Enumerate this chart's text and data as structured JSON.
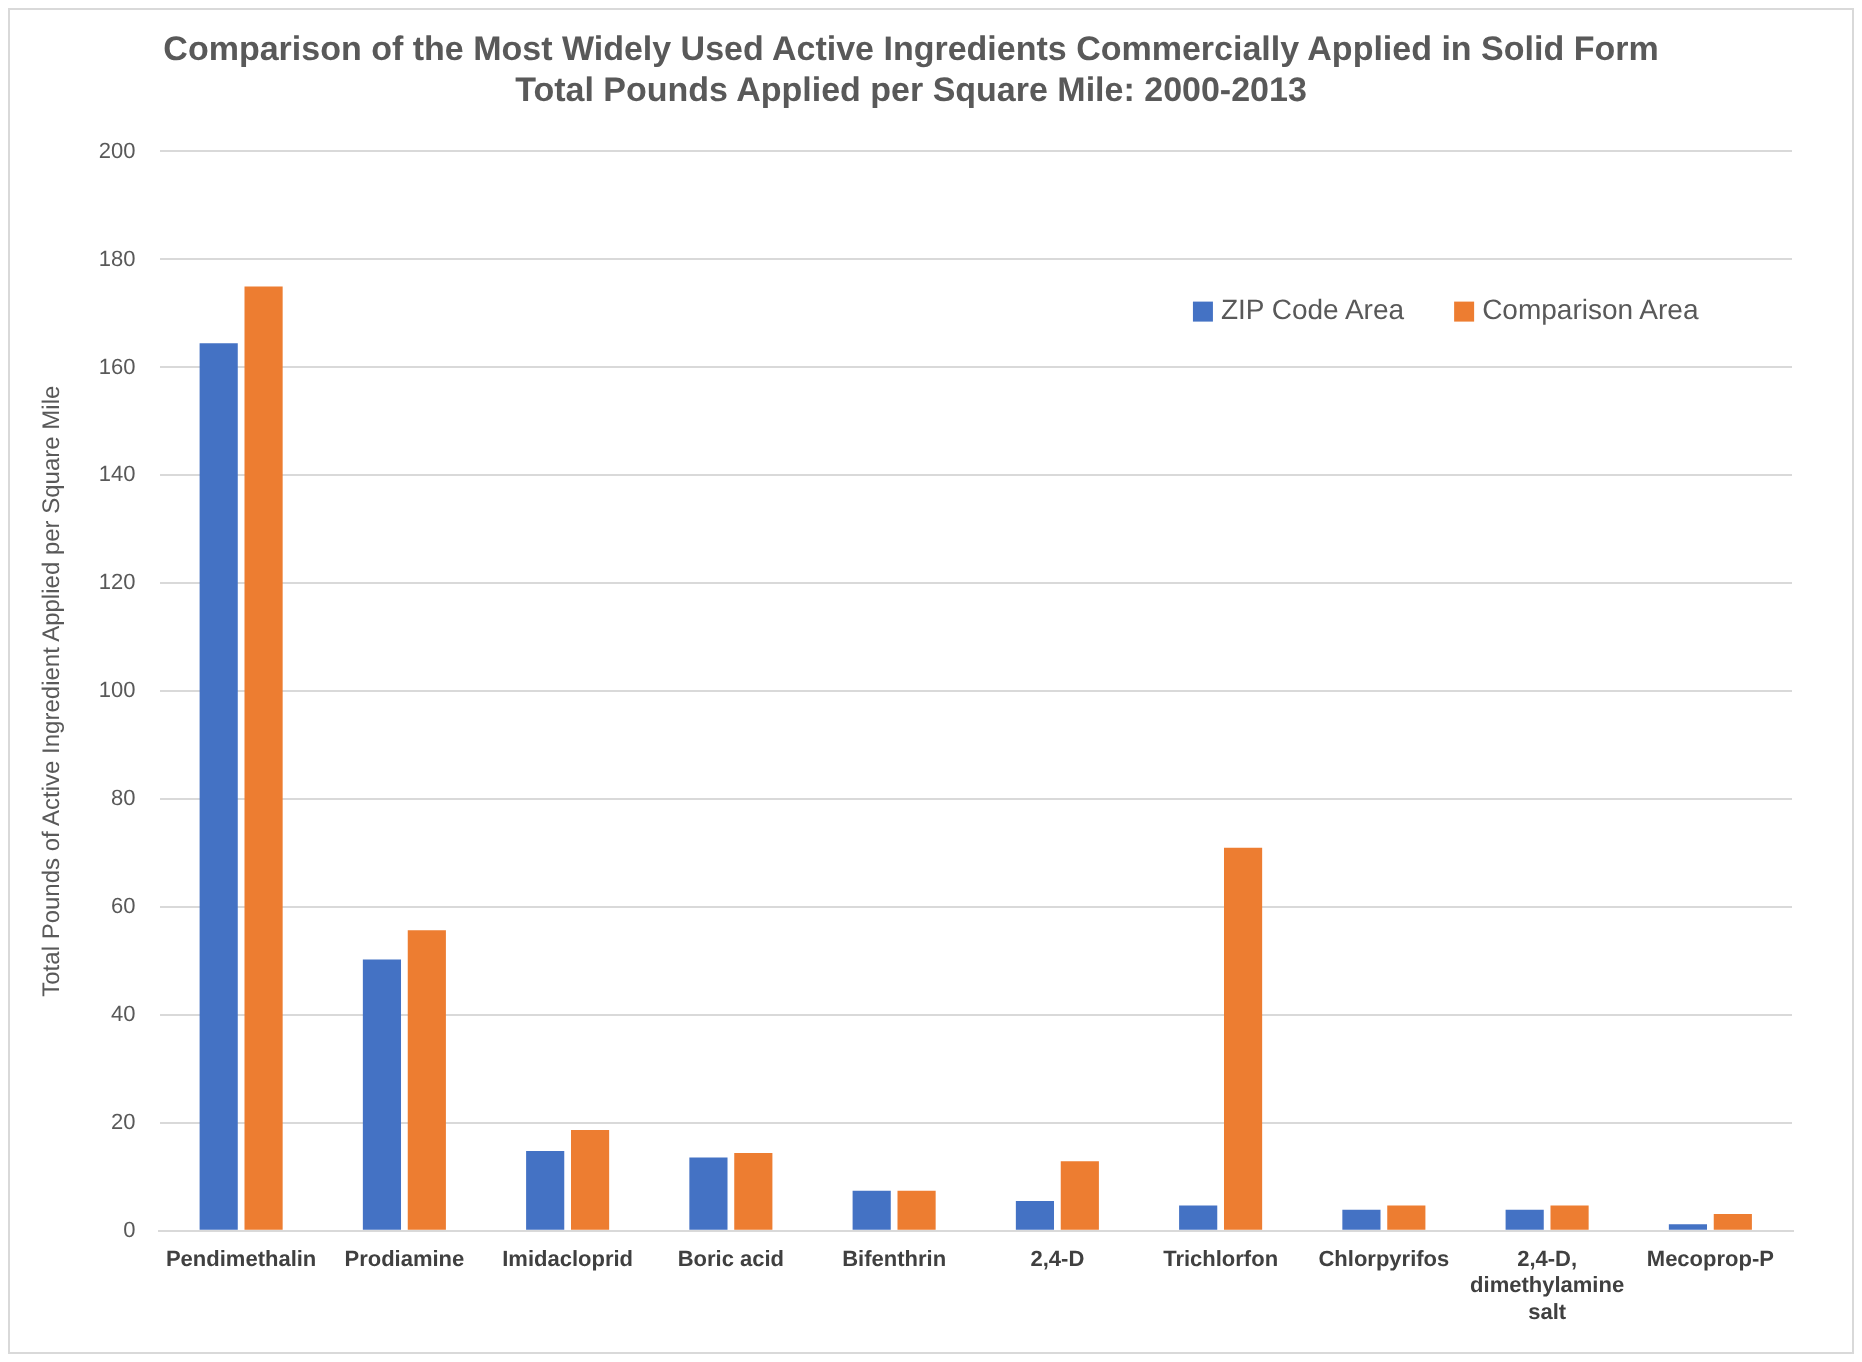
{
  "chart_data": {
    "type": "bar",
    "title": [
      "Comparison of the Most Widely Used Active Ingredients Commercially Applied in Solid Form",
      "Total Pounds Applied per Square Mile: 2000-2013"
    ],
    "ylabel": "Total Pounds of Active Ingredient Applied per Square Mile",
    "categories": [
      "Pendimethalin",
      "Prodiamine",
      "Imidacloprid",
      "Boric acid",
      "Bifenthrin",
      "2,4-D",
      "Trichlorfon",
      "Chlorpyrifos",
      "2,4-D, dimethylamine salt",
      "Mecoprop-P"
    ],
    "series": [
      {
        "name": "ZIP Code Area",
        "color": "#4472c4",
        "values": [
          164.5,
          50.3,
          14.8,
          13.6,
          7.4,
          5.5,
          4.7,
          3.9,
          3.9,
          1.2
        ]
      },
      {
        "name": "Comparison Area",
        "color": "#ed7d31",
        "values": [
          175,
          55.7,
          18.7,
          14.4,
          7.4,
          12.9,
          71,
          4.7,
          4.7,
          3.1
        ]
      }
    ],
    "ylim": [
      0,
      200
    ],
    "yticks": [
      0,
      20,
      40,
      60,
      80,
      100,
      120,
      140,
      160,
      180,
      200
    ],
    "grid": "y",
    "legend": "top right"
  }
}
